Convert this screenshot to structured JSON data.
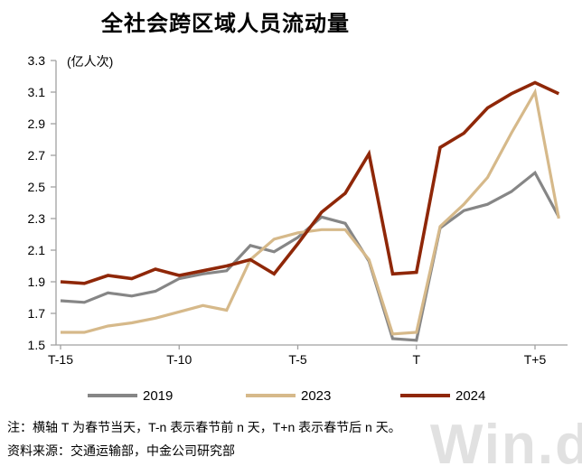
{
  "title": "全社会跨区域人员流动量",
  "unit_label": "(亿人次)",
  "watermark": "Win.d",
  "notes": {
    "line1": "注：横轴 T 为春节当天，T-n 表示春节前 n 天，T+n 表示春节后 n 天。",
    "line2": "资料来源：交通运输部，中金公司研究部"
  },
  "colors": {
    "axis": "#a0a0a0",
    "series_2019": "#868686",
    "series_2023": "#d6b98a",
    "series_2024": "#8f2708"
  },
  "chart_data": {
    "type": "line",
    "title": "全社会跨区域人员流动量",
    "ylabel": "(亿人次)",
    "xlabel": "",
    "ylim": [
      1.5,
      3.3
    ],
    "grid": false,
    "legend_position": "bottom",
    "categories": [
      "T-15",
      "T-14",
      "T-13",
      "T-12",
      "T-11",
      "T-10",
      "T-9",
      "T-8",
      "T-7",
      "T-6",
      "T-5",
      "T-4",
      "T-3",
      "T-2",
      "T-1",
      "T",
      "T+1",
      "T+2",
      "T+3",
      "T+4",
      "T+5",
      "T+6"
    ],
    "yticks": [
      1.5,
      1.7,
      1.9,
      2.1,
      2.3,
      2.5,
      2.7,
      2.9,
      3.1,
      3.3
    ],
    "xticks_shown": [
      {
        "index": 0,
        "label": "T-15"
      },
      {
        "index": 5,
        "label": "T-10"
      },
      {
        "index": 10,
        "label": "T-5"
      },
      {
        "index": 15,
        "label": "T"
      },
      {
        "index": 20,
        "label": "T+5"
      }
    ],
    "series": [
      {
        "name": "2019",
        "color": "#868686",
        "values": [
          1.78,
          1.77,
          1.83,
          1.81,
          1.84,
          1.92,
          1.95,
          1.97,
          2.13,
          2.09,
          2.18,
          2.31,
          2.27,
          2.03,
          1.54,
          1.53,
          2.24,
          2.35,
          2.39,
          2.47,
          2.59,
          2.31
        ]
      },
      {
        "name": "2023",
        "color": "#d6b98a",
        "values": [
          1.58,
          1.58,
          1.62,
          1.64,
          1.67,
          1.71,
          1.75,
          1.72,
          2.04,
          2.17,
          2.21,
          2.23,
          2.23,
          2.04,
          1.57,
          1.58,
          2.25,
          2.39,
          2.56,
          2.84,
          3.1,
          2.3
        ]
      },
      {
        "name": "2024",
        "color": "#8f2708",
        "values": [
          1.9,
          1.89,
          1.94,
          1.92,
          1.98,
          1.94,
          1.97,
          2.0,
          2.04,
          1.95,
          2.14,
          2.34,
          2.46,
          2.71,
          1.95,
          1.96,
          2.75,
          2.84,
          3.0,
          3.09,
          3.16,
          3.09
        ]
      }
    ]
  }
}
